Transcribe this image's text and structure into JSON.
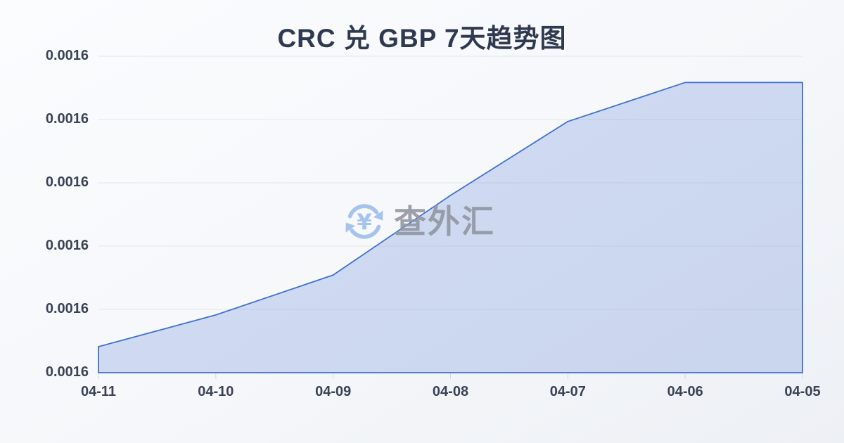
{
  "page": {
    "title": "CRC 兑 GBP 7天趋势图",
    "watermark": {
      "brand": "查外汇",
      "icon": "currency-exchange-icon"
    }
  },
  "chart_data": {
    "type": "area",
    "title": "CRC 兑 GBP 7天趋势图",
    "categories": [
      "04-11",
      "04-10",
      "04-09",
      "04-08",
      "04-07",
      "04-06",
      "04-05"
    ],
    "series": [
      {
        "name": "CRC/GBP",
        "values_norm": [
          0.082,
          0.182,
          0.308,
          0.559,
          0.792,
          0.915,
          0.915
        ]
      }
    ],
    "y_tick_labels": [
      "0.0016",
      "0.0016",
      "0.0016",
      "0.0016",
      "0.0016",
      "0.0016"
    ],
    "xlabel": "",
    "ylabel": "",
    "grid": true,
    "legend": false,
    "colors": {
      "line": "#4170cf",
      "fill": "rgba(69,115,211,0.22)",
      "gridline": "#e2e6ec",
      "tick": "#d3d8e0",
      "axis_text": "#3a4254",
      "title_text": "#2f3a50",
      "watermark_blue": "#a6c3ee",
      "watermark_gray": "#8f95a0"
    }
  }
}
